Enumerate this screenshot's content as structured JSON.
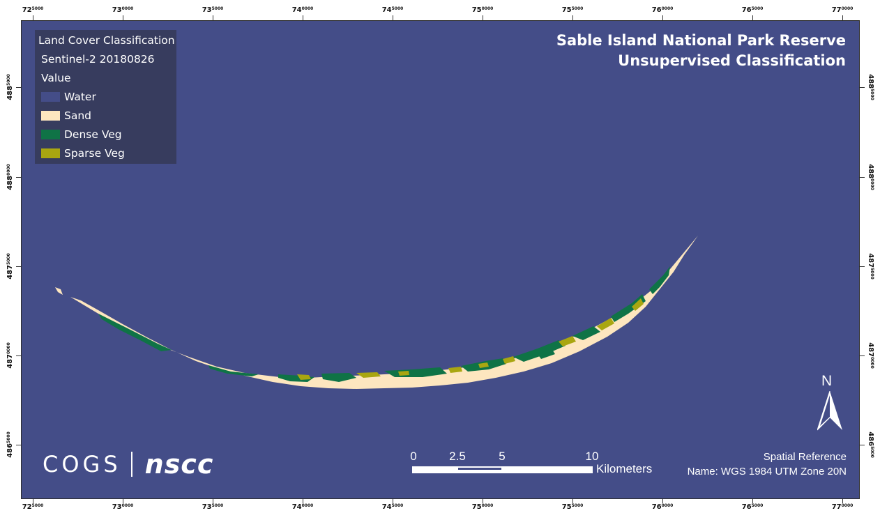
{
  "map": {
    "title_line1": "Sable Island National Park Reserve",
    "title_line2": "Unsupervised Classification",
    "water_color": "#444d88"
  },
  "legend": {
    "title": "Land Cover Classification",
    "subtitle": "Sentinel-2 20180826",
    "field": "Value",
    "items": [
      {
        "label": "Water",
        "color": "#444d88"
      },
      {
        "label": "Sand",
        "color": "#fde6bf"
      },
      {
        "label": "Dense Veg",
        "color": "#0f7346"
      },
      {
        "label": "Sparse Veg",
        "color": "#a9a611"
      }
    ]
  },
  "grid": {
    "x_ticks": [
      {
        "major": "72",
        "minor": "5000"
      },
      {
        "major": "73",
        "minor": "0000"
      },
      {
        "major": "73",
        "minor": "5000"
      },
      {
        "major": "74",
        "minor": "0000"
      },
      {
        "major": "74",
        "minor": "5000"
      },
      {
        "major": "75",
        "minor": "0000"
      },
      {
        "major": "75",
        "minor": "5000"
      },
      {
        "major": "76",
        "minor": "0000"
      },
      {
        "major": "76",
        "minor": "5000"
      },
      {
        "major": "77",
        "minor": "0000"
      }
    ],
    "y_ticks": [
      {
        "major": "488",
        "minor": "5000"
      },
      {
        "major": "488",
        "minor": "0000"
      },
      {
        "major": "487",
        "minor": "5000"
      },
      {
        "major": "487",
        "minor": "0000"
      },
      {
        "major": "486",
        "minor": "5000"
      }
    ]
  },
  "scale_bar": {
    "labels": [
      "0",
      "2.5",
      "5",
      "10"
    ],
    "unit": "Kilometers"
  },
  "north_arrow": {
    "label": "N"
  },
  "spatial_reference": {
    "heading": "Spatial Reference",
    "name": "Name: WGS 1984 UTM Zone 20N"
  },
  "logos": {
    "cogs": "COGS",
    "nscc": "nscc"
  }
}
